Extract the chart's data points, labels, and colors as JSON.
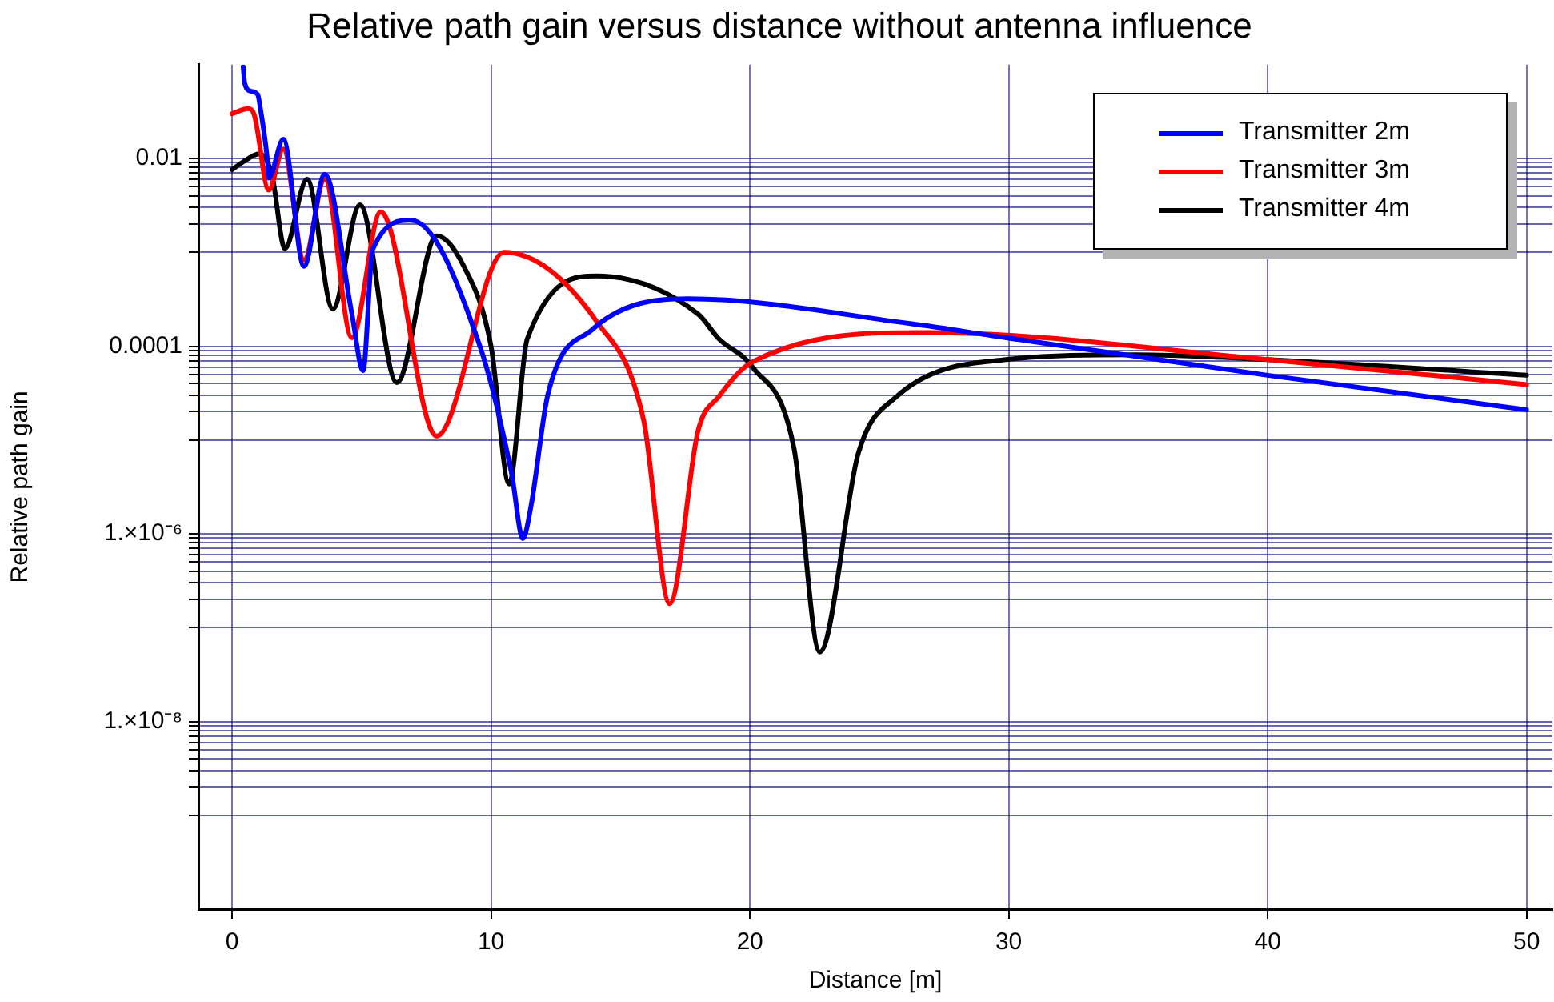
{
  "chart_data": {
    "type": "line",
    "title": "Relative path gain versus distance without antenna influence",
    "xlabel": "Distance [m]",
    "ylabel": "Relative path gain",
    "log": "y",
    "grid": true,
    "legend": "top right",
    "marker": "none",
    "line_style": "solid",
    "xlim": [
      -1.3,
      51
    ],
    "xticks": [
      0,
      10,
      20,
      30,
      40,
      50
    ],
    "ylim": [
      1e-10,
      0.1
    ],
    "yticks": [
      {
        "value": 0.01,
        "label": "0.01"
      },
      {
        "value": 0.009,
        "label": null
      },
      {
        "value": 0.008,
        "label": null
      },
      {
        "value": 0.007,
        "label": null
      },
      {
        "value": 0.006,
        "label": null
      },
      {
        "value": 0.005,
        "label": null
      },
      {
        "value": 0.004,
        "label": null
      },
      {
        "value": 0.003,
        "label": null
      },
      {
        "value": 0.002,
        "label": null
      },
      {
        "value": 0.001,
        "label": null
      },
      {
        "value": 0.0001,
        "label": "0.0001"
      },
      {
        "value": 9e-05,
        "label": null
      },
      {
        "value": 8e-05,
        "label": null
      },
      {
        "value": 7e-05,
        "label": null
      },
      {
        "value": 6e-05,
        "label": null
      },
      {
        "value": 5e-05,
        "label": null
      },
      {
        "value": 4e-05,
        "label": null
      },
      {
        "value": 3e-05,
        "label": null
      },
      {
        "value": 2e-05,
        "label": null
      },
      {
        "value": 1e-05,
        "label": null
      },
      {
        "value": 1e-06,
        "label": "1.×10⁻⁶"
      },
      {
        "value": 9e-07,
        "label": null
      },
      {
        "value": 8e-07,
        "label": null
      },
      {
        "value": 7e-07,
        "label": null
      },
      {
        "value": 6e-07,
        "label": null
      },
      {
        "value": 5e-07,
        "label": null
      },
      {
        "value": 4e-07,
        "label": null
      },
      {
        "value": 3e-07,
        "label": null
      },
      {
        "value": 2e-07,
        "label": null
      },
      {
        "value": 1e-07,
        "label": null
      },
      {
        "value": 1e-08,
        "label": "1.×10⁻⁸"
      },
      {
        "value": 9e-09,
        "label": null
      },
      {
        "value": 8e-09,
        "label": null
      },
      {
        "value": 7e-09,
        "label": null
      },
      {
        "value": 6e-09,
        "label": null
      },
      {
        "value": 5e-09,
        "label": null
      },
      {
        "value": 4e-09,
        "label": null
      },
      {
        "value": 3e-09,
        "label": null
      },
      {
        "value": 2e-09,
        "label": null
      },
      {
        "value": 1e-09,
        "label": null
      }
    ],
    "series": [
      {
        "name": "Transmitter 2m",
        "color": "#0000ff",
        "x": [
          0.43,
          0.49,
          0.74,
          0.99,
          1.11,
          1.36,
          1.42,
          1.98,
          2.78,
          3.58,
          4.63,
          5.06,
          5.43,
          6.91,
          9.57,
          10.8,
          11.23,
          11.54,
          12.2,
          13.9,
          17.6,
          26.2,
          29.9,
          40,
          50
        ],
        "values": [
          0.095,
          0.063,
          0.052,
          0.048,
          0.032,
          0.01,
          0.0062,
          0.016,
          0.00071,
          0.0068,
          0.00022,
          5.5e-05,
          0.00107,
          0.0022,
          0.0001,
          4.3e-06,
          8.9e-07,
          1.95e-06,
          3.1e-05,
          0.00015,
          0.00032,
          0.000174,
          0.000123,
          4.9e-05,
          2.1e-05
        ]
      },
      {
        "name": "Transmitter 3m",
        "color": "#ff0000",
        "x": [
          0,
          0.62,
          0.86,
          1.42,
          1.98,
          2.78,
          3.58,
          4.63,
          5.74,
          7.9,
          10.5,
          14.1,
          15.9,
          16.9,
          18.0,
          18.8,
          20.1,
          26.7,
          40,
          50
        ],
        "values": [
          0.03,
          0.034,
          0.029,
          0.0046,
          0.0126,
          0.00083,
          0.006,
          0.000123,
          0.0027,
          1.1e-05,
          0.001,
          0.00018,
          1.6e-05,
          1.8e-07,
          1.26e-05,
          2.9e-05,
          6.8e-05,
          0.00014,
          7.2e-05,
          3.9e-05
        ]
      },
      {
        "name": "Transmitter 4m",
        "color": "#000000",
        "x": [
          0,
          0.43,
          1.05,
          1.54,
          2.04,
          2.9,
          3.89,
          4.94,
          6.36,
          7.9,
          8.95,
          10,
          10.7,
          11.4,
          14.1,
          18.0,
          18.8,
          20.1,
          21.7,
          22.7,
          24.2,
          25.6,
          29.9,
          34.9,
          40,
          50
        ],
        "values": [
          0.0076,
          0.0092,
          0.0112,
          0.0067,
          0.0011,
          0.006,
          0.00025,
          0.0032,
          4.1e-05,
          0.0015,
          0.00071,
          0.0001,
          3.4e-06,
          0.00012,
          0.00056,
          0.00022,
          0.00012,
          6e-05,
          8.3e-06,
          5.5e-08,
          7.4e-06,
          2.8e-05,
          7.2e-05,
          8.1e-05,
          7.2e-05,
          4.9e-05
        ]
      }
    ]
  }
}
